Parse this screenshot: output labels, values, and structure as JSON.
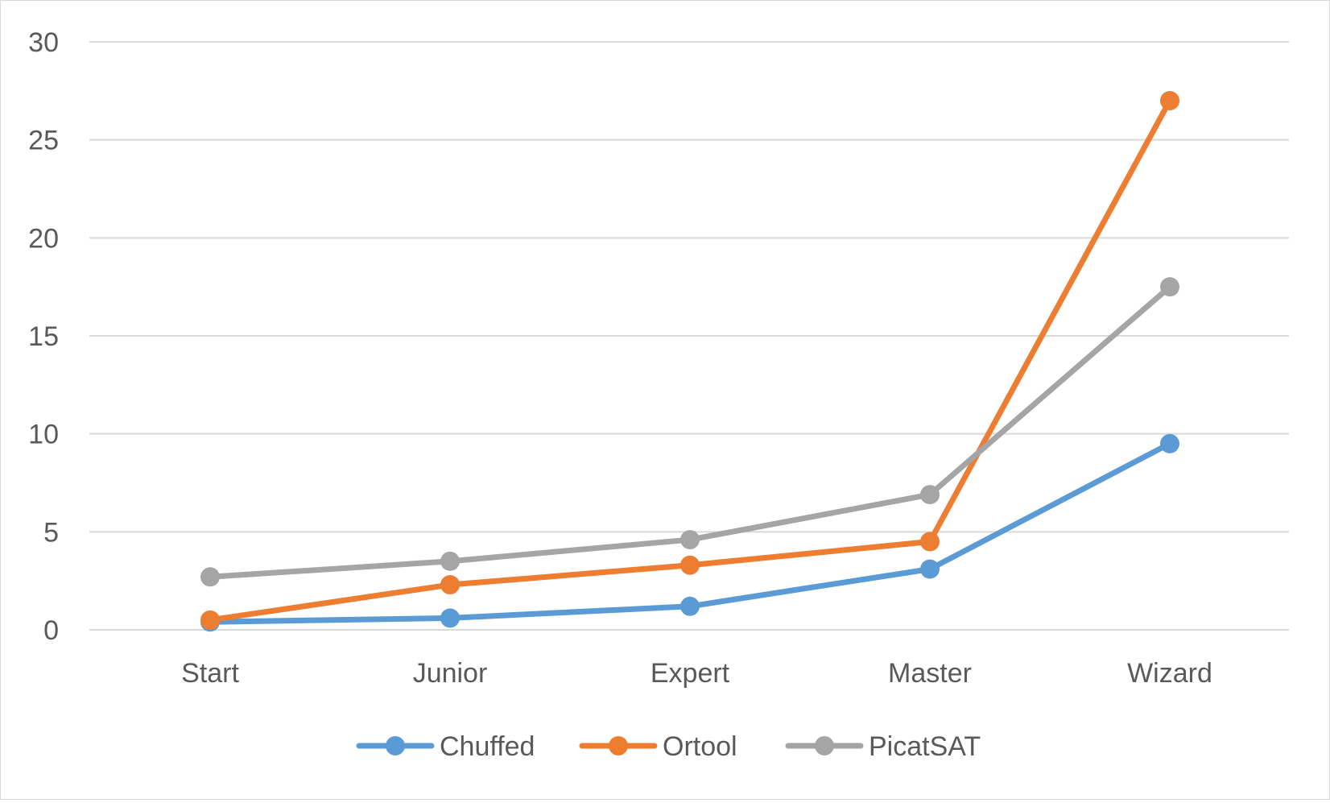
{
  "chart_data": {
    "type": "line",
    "title": "",
    "xlabel": "",
    "ylabel": "",
    "categories": [
      "Start",
      "Junior",
      "Expert",
      "Master",
      "Wizard"
    ],
    "ylim": [
      0,
      30
    ],
    "yticks": [
      0,
      5,
      10,
      15,
      20,
      25,
      30
    ],
    "grid": true,
    "legend_position": "bottom",
    "series": [
      {
        "name": "Chuffed",
        "color": "#5b9bd5",
        "values": [
          0.4,
          0.6,
          1.2,
          3.1,
          9.5
        ]
      },
      {
        "name": "Ortool",
        "color": "#ed7d31",
        "values": [
          0.5,
          2.3,
          3.3,
          4.5,
          27.0
        ]
      },
      {
        "name": "PicatSAT",
        "color": "#a5a5a5",
        "values": [
          2.7,
          3.5,
          4.6,
          6.9,
          17.5
        ]
      }
    ]
  }
}
